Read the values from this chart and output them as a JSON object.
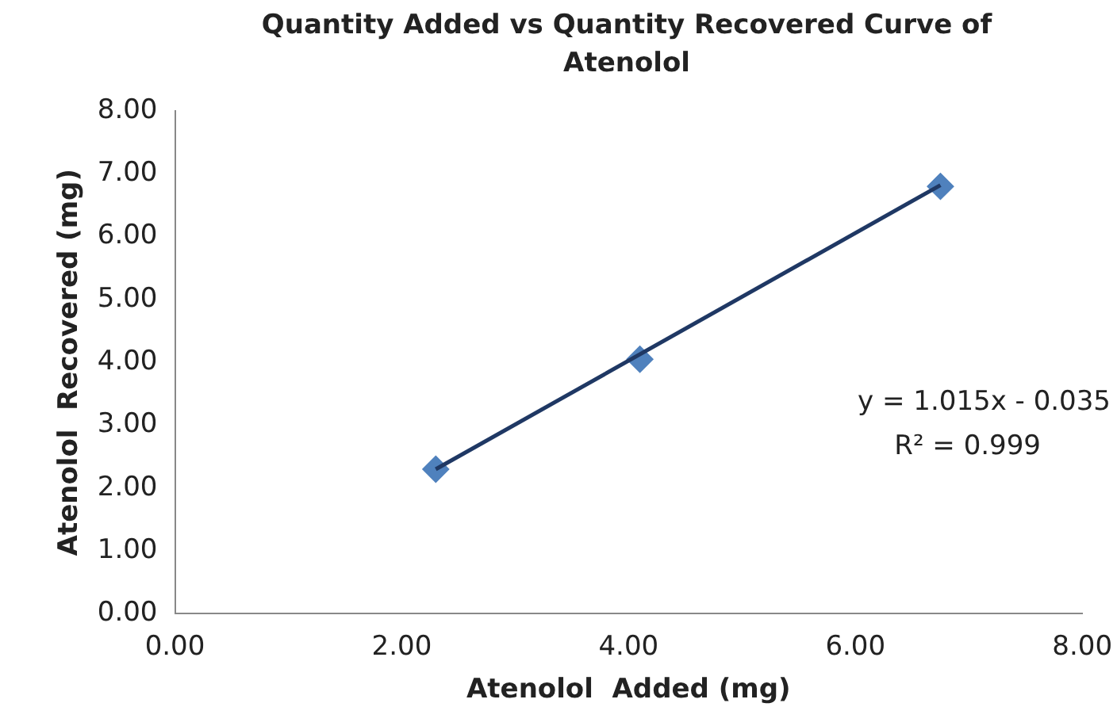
{
  "chart_data": {
    "type": "scatter",
    "title": "Quantity Added vs Quantity Recovered Curve of Atenolol",
    "xlabel": "Atenolol  Added (mg)",
    "ylabel": "Atenolol  Recovered (mg)",
    "x": [
      2.3,
      4.1,
      6.75
    ],
    "series": [
      {
        "color": "#4f81bd",
        "values": [
          2.3,
          4.05,
          6.8
        ],
        "marker": "diamond"
      },
      {
        "type": "line",
        "color": "#1f3864",
        "x": [
          2.3,
          6.75
        ],
        "values": [
          2.3,
          6.82
        ],
        "marker": "none",
        "line_style": "solid"
      }
    ],
    "xlim": [
      0,
      8
    ],
    "xticks": [
      {
        "value": 0,
        "label": "0.00"
      },
      {
        "value": 2,
        "label": "2.00"
      },
      {
        "value": 4,
        "label": "4.00"
      },
      {
        "value": 6,
        "label": "6.00"
      },
      {
        "value": 8,
        "label": "8.00"
      }
    ],
    "ylim": [
      0,
      8
    ],
    "yticks": [
      {
        "value": 0,
        "label": "0.00"
      },
      {
        "value": 1,
        "label": "1.00"
      },
      {
        "value": 2,
        "label": "2.00"
      },
      {
        "value": 3,
        "label": "3.00"
      },
      {
        "value": 4,
        "label": "4.00"
      },
      {
        "value": 5,
        "label": "5.00"
      },
      {
        "value": 6,
        "label": "6.00"
      },
      {
        "value": 7,
        "label": "7.00"
      },
      {
        "value": 8,
        "label": "8.00"
      }
    ],
    "annotations": [
      "y = 1.015x - 0.035",
      "R² = 0.999"
    ],
    "grid": false,
    "legend": false
  }
}
